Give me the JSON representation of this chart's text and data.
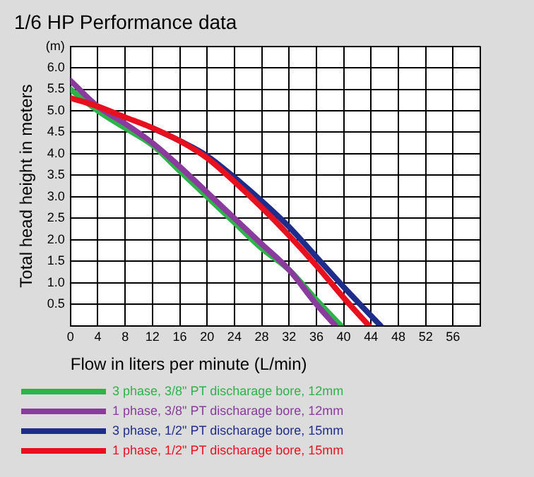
{
  "chart_data": {
    "type": "line",
    "title": "1/6 HP Performance data",
    "xlabel": "Flow in liters per minute (L/min)",
    "ylabel": "Total head height in meters",
    "xlim": [
      0,
      60
    ],
    "xticks": [
      0,
      4,
      8,
      12,
      16,
      20,
      24,
      28,
      32,
      36,
      40,
      44,
      48,
      52,
      56,
      {
        "value": 60,
        "label": null
      }
    ],
    "ylim": [
      0,
      6.5
    ],
    "yticks": [
      {
        "value": 0,
        "label": null
      },
      0.5,
      {
        "value": 1,
        "label": "1.0"
      },
      1.5,
      {
        "value": 2,
        "label": "2.0"
      },
      2.5,
      {
        "value": 3,
        "label": "3.0"
      },
      3.5,
      {
        "value": 4,
        "label": "4.0"
      },
      4.5,
      {
        "value": 5,
        "label": "5.0"
      },
      5.5,
      {
        "value": 6,
        "label": "6.0"
      },
      {
        "value": 6.5,
        "label": "(m)"
      }
    ],
    "grid": true,
    "legend": "bottom",
    "marker": "none",
    "line_style": "solid",
    "series": [
      {
        "name": "3 phase, 3/8\" PT discharage bore, 12mm",
        "color": "#2eb24a",
        "x": [
          0,
          4,
          8,
          12,
          16,
          20,
          24,
          28,
          32,
          36,
          39.6
        ],
        "values": [
          5.5,
          5.0,
          4.6,
          4.2,
          3.6,
          3.0,
          2.4,
          1.8,
          1.3,
          0.6,
          0
        ]
      },
      {
        "name": "1 phase, 3/8\" PT discharage bore, 12mm",
        "color": "#8b3a9e",
        "x": [
          0,
          4,
          8,
          12,
          16,
          20,
          24,
          28,
          32,
          36,
          38.8
        ],
        "values": [
          5.7,
          5.1,
          4.7,
          4.25,
          3.7,
          3.1,
          2.5,
          1.9,
          1.3,
          0.5,
          0
        ]
      },
      {
        "name": "3 phase, 1/2\" PT discharage bore, 15mm",
        "color": "#1e2d8c",
        "x": [
          12,
          16,
          20,
          24,
          28,
          32,
          36,
          40,
          45.4
        ],
        "values": [
          4.6,
          4.3,
          3.95,
          3.45,
          2.9,
          2.3,
          1.6,
          0.9,
          0
        ]
      },
      {
        "name": "1 phase, 1/2\" PT discharage bore, 15mm",
        "color": "#e8101e",
        "x": [
          0,
          4,
          8,
          12,
          16,
          20,
          24,
          28,
          32,
          36,
          40,
          43.7
        ],
        "values": [
          5.3,
          5.1,
          4.85,
          4.6,
          4.3,
          3.9,
          3.35,
          2.75,
          2.1,
          1.4,
          0.65,
          0
        ]
      }
    ]
  }
}
